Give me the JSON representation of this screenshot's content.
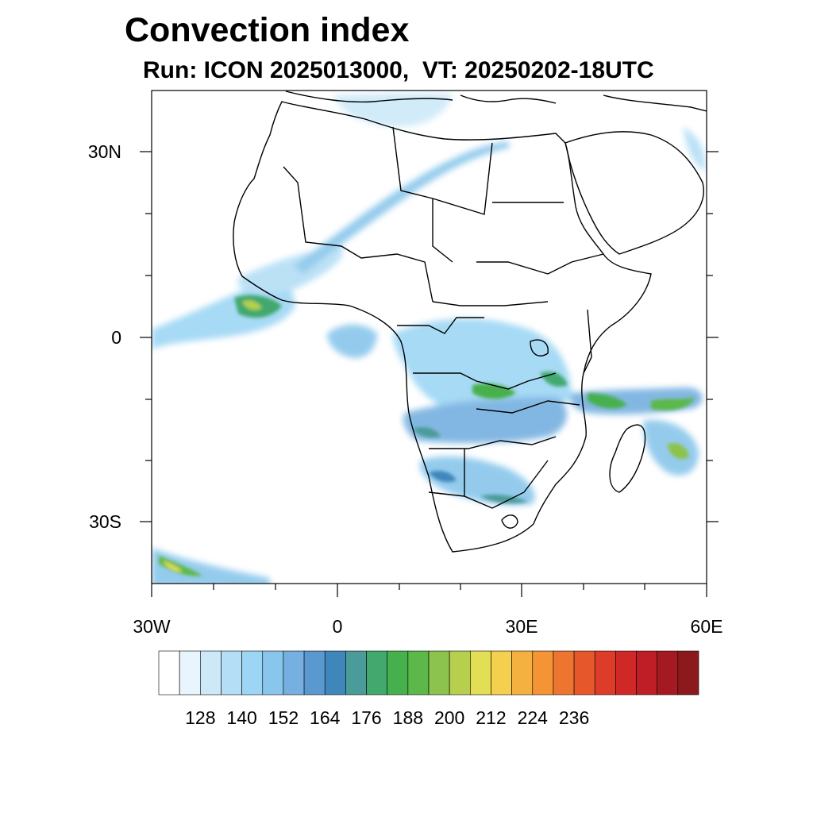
{
  "title": "Convection index",
  "subtitle": "Run: ICON 2025013000,  VT: 20250202-18UTC",
  "map": {
    "projection": "cylindrical equidistant",
    "lon_range": [
      -30,
      60
    ],
    "lat_range": [
      -40,
      40
    ],
    "lat_ticks": [
      "30N",
      "0",
      "30S"
    ],
    "lon_ticks": [
      "30W",
      "0",
      "30E",
      "60E"
    ],
    "region": "Africa and surrounding oceans"
  },
  "colorbar": {
    "labels": [
      "128",
      "140",
      "152",
      "164",
      "176",
      "188",
      "200",
      "212",
      "224",
      "236"
    ],
    "colors": [
      "#ffffff",
      "#e8f5fc",
      "#cde9f8",
      "#b4def5",
      "#9dd6f4",
      "#89c6eb",
      "#76b0e0",
      "#5a99d0",
      "#3f86bb",
      "#4b9b9a",
      "#43a86e",
      "#46b04d",
      "#5cb848",
      "#8cc34e",
      "#b6d04e",
      "#e2df55",
      "#f5cf4e",
      "#f4b13f",
      "#f49434",
      "#ee7530",
      "#e6582c",
      "#dd3d28",
      "#d02827",
      "#bf1e26",
      "#a51a22",
      "#8c1a1c"
    ]
  }
}
